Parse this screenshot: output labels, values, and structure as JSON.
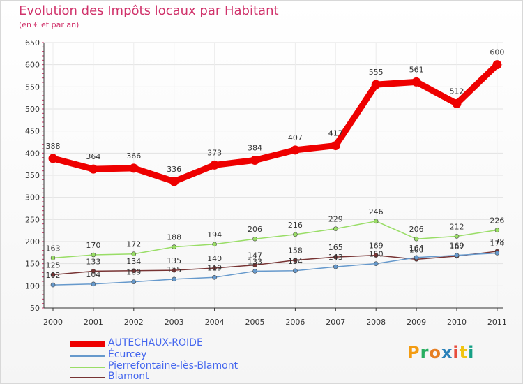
{
  "header": {
    "title": "Evolution des Impôts locaux par Habitant",
    "subtitle": "(en € et par an)"
  },
  "logo": {
    "text": "Proxiti",
    "letter_colors": [
      "#f39c12",
      "#27ae60",
      "#e67e22",
      "#2980b9",
      "#e74c3c",
      "#f1c40f",
      "#16a085"
    ]
  },
  "chart_data": {
    "type": "line",
    "title": "Evolution des Impôts locaux par Habitant",
    "subtitle": "(en € et par an)",
    "xlabel": "",
    "ylabel": "",
    "ylim": [
      50,
      650
    ],
    "yticks": [
      50,
      100,
      150,
      200,
      250,
      300,
      350,
      400,
      450,
      500,
      550,
      600,
      650
    ],
    "grid": true,
    "legend_position": "bottom-left",
    "categories": [
      "2000",
      "2001",
      "2002",
      "2003",
      "2004",
      "2005",
      "2006",
      "2007",
      "2008",
      "2009",
      "2010",
      "2011"
    ],
    "series": [
      {
        "name": "AUTECHAUX-ROIDE",
        "color": "#ee0000",
        "values": [
          388,
          364,
          366,
          336,
          373,
          384,
          407,
          417,
          555,
          561,
          512,
          600
        ],
        "labels": [
          "388",
          "364",
          "366",
          "336",
          "373",
          "384",
          "407",
          "417",
          "555",
          "561",
          "512",
          "600"
        ]
      },
      {
        "name": "Écurcey",
        "color": "#6699cc",
        "values": [
          102,
          104,
          109,
          115,
          119,
          133,
          134,
          143,
          150,
          164,
          169,
          174
        ],
        "labels": [
          "102",
          "104",
          "109",
          "115",
          "119",
          "133",
          "134",
          "143",
          "150",
          "164",
          "169",
          "174"
        ]
      },
      {
        "name": "Pierrefontaine-lès-Blamont",
        "color": "#99dd66",
        "values": [
          163,
          170,
          172,
          188,
          194,
          206,
          216,
          229,
          246,
          206,
          212,
          226
        ],
        "labels": [
          "163",
          "170",
          "172",
          "188",
          "194",
          "206",
          "216",
          "229",
          "246",
          "206",
          "212",
          "226"
        ]
      },
      {
        "name": "Blamont",
        "color": "#773333",
        "values": [
          125,
          133,
          134,
          135,
          140,
          147,
          158,
          165,
          169,
          160,
          167,
          178
        ],
        "labels": [
          "125",
          "133",
          "134",
          "135",
          "140",
          "147",
          "158",
          "165",
          "169",
          "160",
          "167",
          "178"
        ]
      }
    ]
  }
}
